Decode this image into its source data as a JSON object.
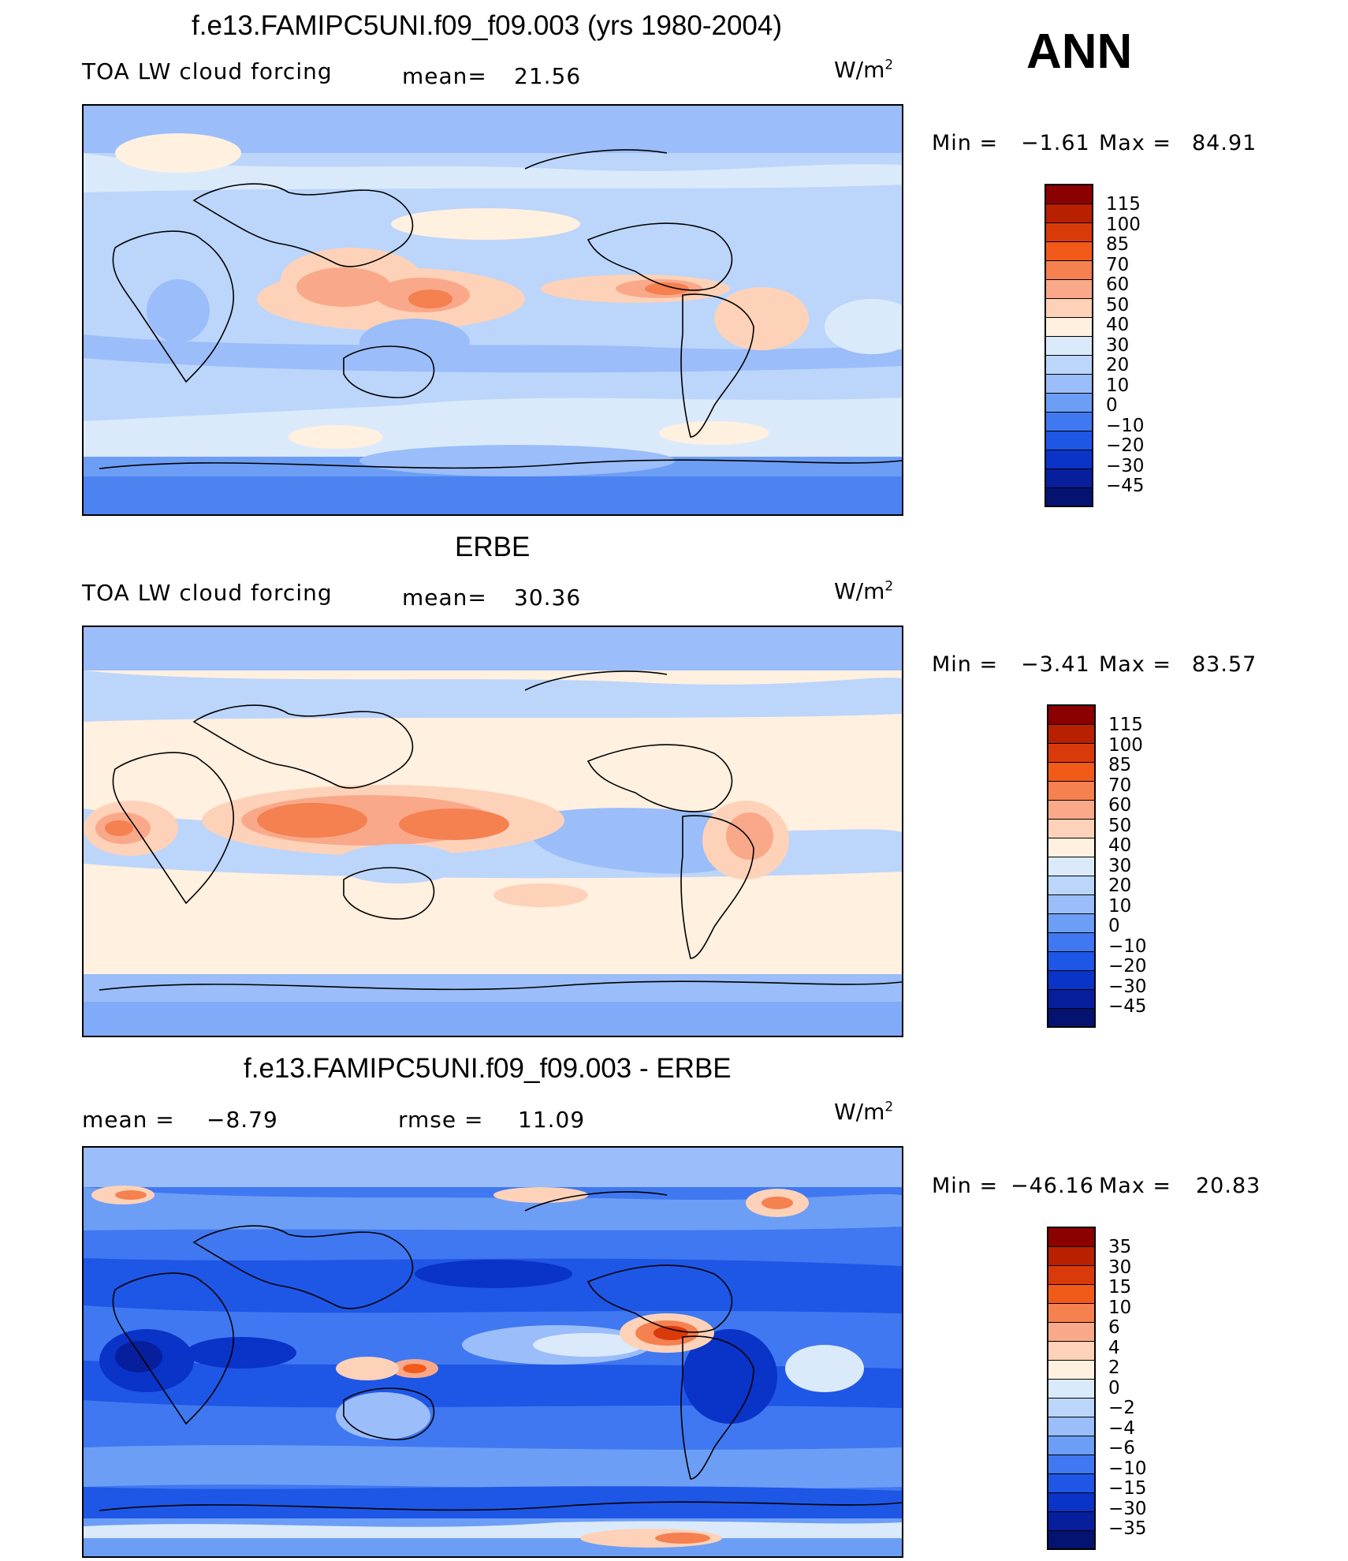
{
  "season": "ANN",
  "panels": [
    {
      "title": "f.e13.FAMIPC5UNI.f09_f09.003 (yrs 1980-2004)",
      "left_label": "TOA LW cloud forcing",
      "mean_label": "mean=",
      "mean_value": "21.56",
      "units": "W/m",
      "units_exp": "2",
      "min_label": "Min =",
      "min_value": "−1.61",
      "max_label": "Max =",
      "max_value": "84.91",
      "levels": [
        "115",
        "100",
        "85",
        "70",
        "60",
        "50",
        "40",
        "30",
        "20",
        "10",
        "0",
        "−10",
        "−20",
        "−30",
        "−45"
      ],
      "colors": [
        "#8b0000",
        "#b82000",
        "#d93a0a",
        "#f25a1a",
        "#f58050",
        "#f9a98a",
        "#fdd2b8",
        "#fff0e0",
        "#dbeafb",
        "#bcd5fb",
        "#9bbdf9",
        "#6d9ef6",
        "#3f78f0",
        "#1e56e6",
        "#0a33c8",
        "#071f9c",
        "#041270"
      ]
    },
    {
      "title": "ERBE",
      "left_label": "TOA LW cloud forcing",
      "mean_label": "mean=",
      "mean_value": "30.36",
      "units": "W/m",
      "units_exp": "2",
      "min_label": "Min =",
      "min_value": "−3.41",
      "max_label": "Max =",
      "max_value": "83.57",
      "levels": [
        "115",
        "100",
        "85",
        "70",
        "60",
        "50",
        "40",
        "30",
        "20",
        "10",
        "0",
        "−10",
        "−20",
        "−30",
        "−45"
      ],
      "colors": [
        "#8b0000",
        "#b82000",
        "#d93a0a",
        "#f25a1a",
        "#f58050",
        "#f9a98a",
        "#fdd2b8",
        "#fff0e0",
        "#dbeafb",
        "#bcd5fb",
        "#9bbdf9",
        "#6d9ef6",
        "#3f78f0",
        "#1e56e6",
        "#0a33c8",
        "#071f9c",
        "#041270"
      ]
    },
    {
      "title": "f.e13.FAMIPC5UNI.f09_f09.003 - ERBE",
      "left_label": "",
      "mean_label": "mean =",
      "mean_value": "−8.79",
      "rmse_label": "rmse =",
      "rmse_value": "11.09",
      "units": "W/m",
      "units_exp": "2",
      "min_label": "Min =",
      "min_value": "−46.16",
      "max_label": "Max =",
      "max_value": "20.83",
      "levels": [
        "35",
        "30",
        "15",
        "10",
        "6",
        "4",
        "2",
        "0",
        "−2",
        "−4",
        "−6",
        "−10",
        "−15",
        "−30",
        "−35"
      ],
      "colors": [
        "#8b0000",
        "#b82000",
        "#d93a0a",
        "#f25a1a",
        "#f58050",
        "#f9a98a",
        "#fdd2b8",
        "#fff0e0",
        "#dbeafb",
        "#bcd5fb",
        "#9bbdf9",
        "#6d9ef6",
        "#3f78f0",
        "#1e56e6",
        "#0a33c8",
        "#071f9c",
        "#041270"
      ]
    }
  ]
}
